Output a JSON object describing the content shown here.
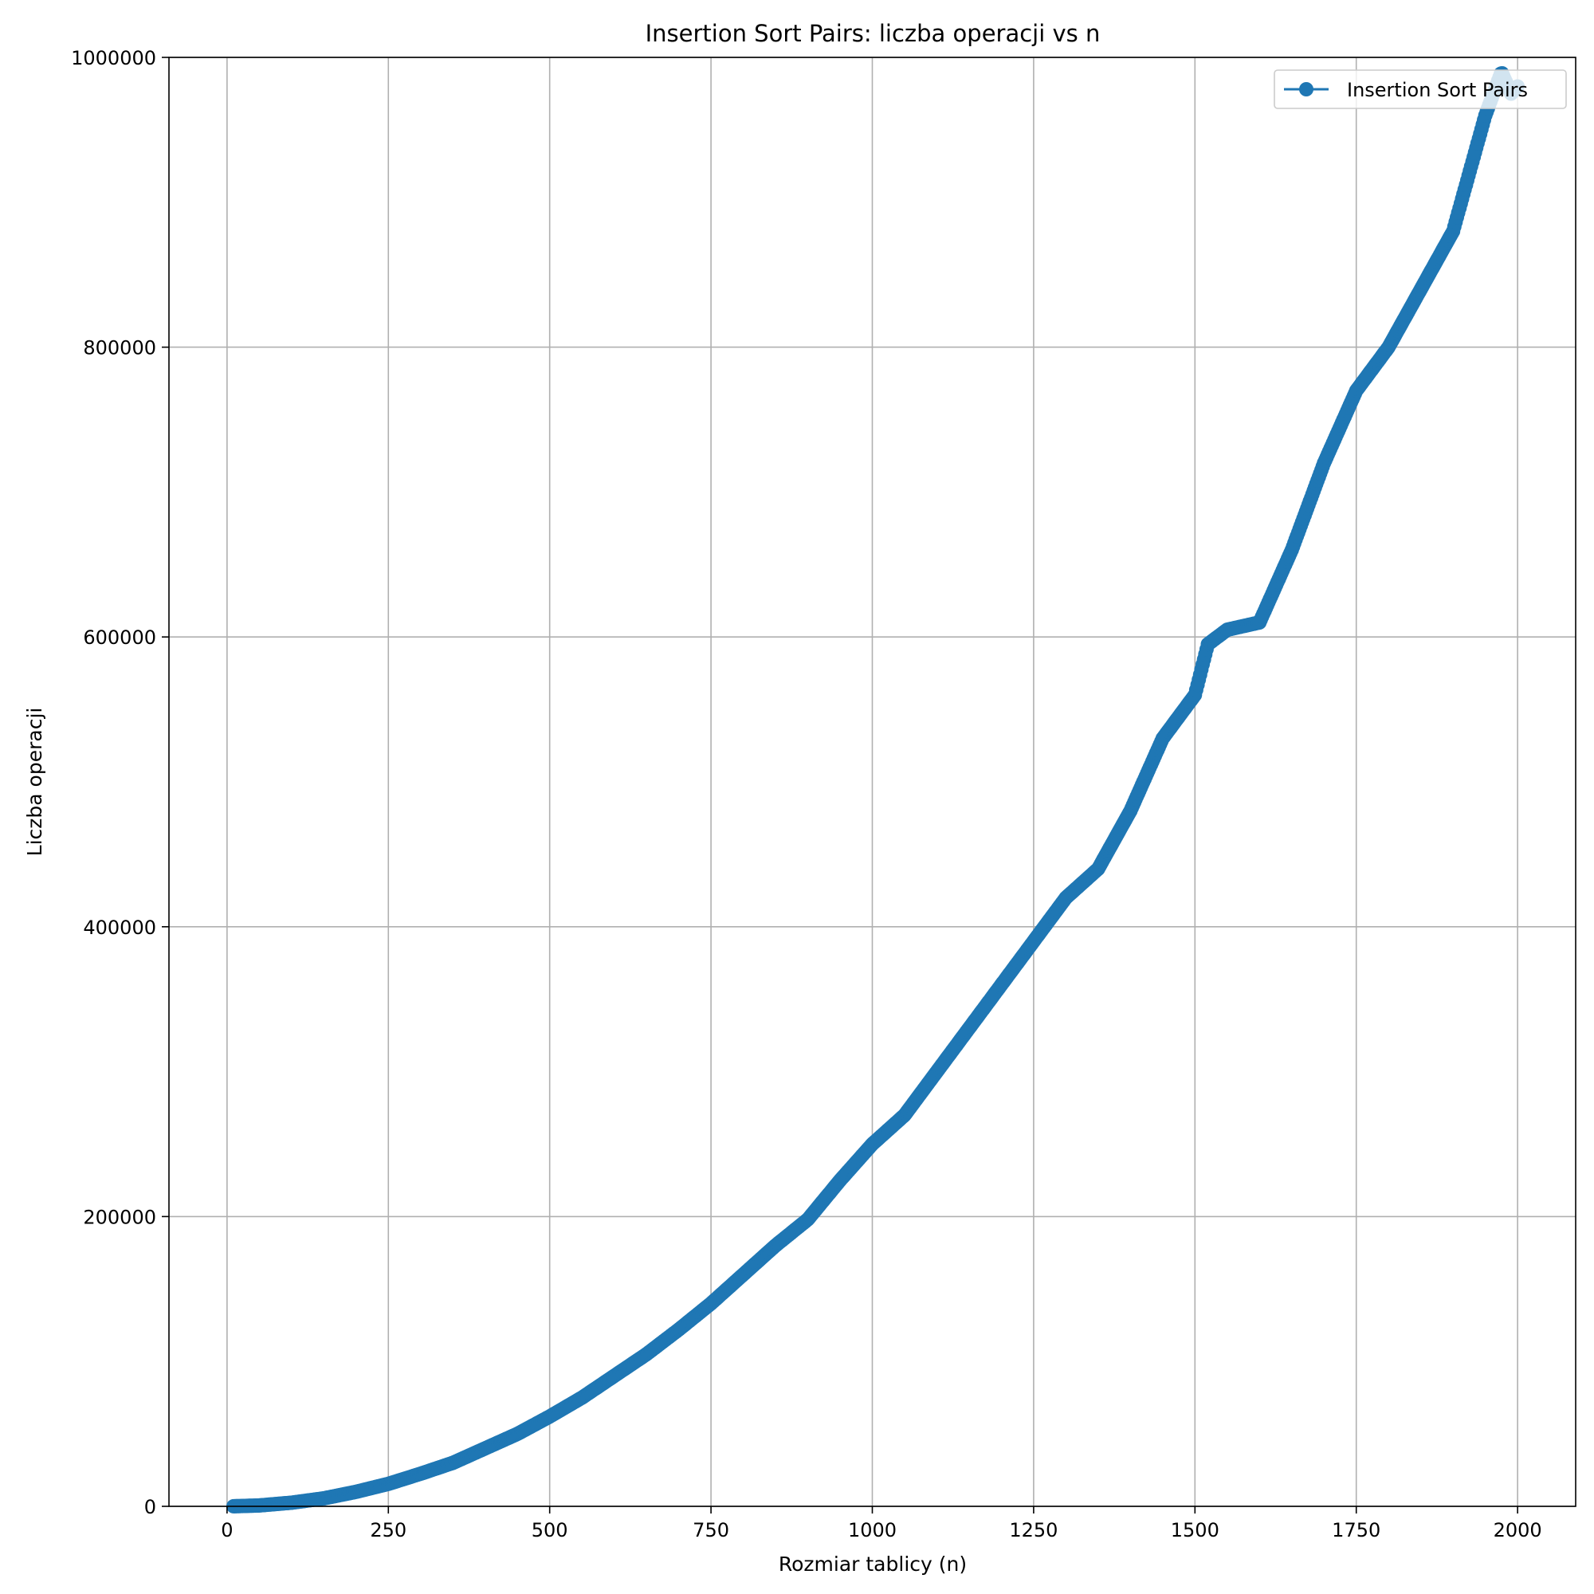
{
  "chart_data": {
    "type": "line",
    "title": "Insertion Sort Pairs: liczba operacji vs n",
    "xlabel": "Rozmiar tablicy (n)",
    "ylabel": "Liczba operacji",
    "xlim": [
      -90,
      2090
    ],
    "ylim": [
      0,
      1000000
    ],
    "xticks": [
      0,
      250,
      500,
      750,
      1000,
      1250,
      1500,
      1750,
      2000
    ],
    "yticks": [
      0,
      200000,
      400000,
      600000,
      800000,
      1000000
    ],
    "xtick_labels": [
      "0",
      "250",
      "500",
      "750",
      "1000",
      "1250",
      "1500",
      "1750",
      "2000"
    ],
    "ytick_labels": [
      "0",
      "200000",
      "400000",
      "600000",
      "800000",
      "1000000"
    ],
    "grid": true,
    "legend": {
      "position": "top-right",
      "entries": [
        "Insertion Sort Pairs"
      ]
    },
    "colors": {
      "series": "#1f77b4"
    },
    "series": [
      {
        "name": "Insertion Sort Pairs",
        "marker": "circle",
        "points": [
          [
            10,
            30
          ],
          [
            50,
            600
          ],
          [
            100,
            2500
          ],
          [
            150,
            5500
          ],
          [
            200,
            10000
          ],
          [
            250,
            15500
          ],
          [
            300,
            22500
          ],
          [
            350,
            30000
          ],
          [
            400,
            40000
          ],
          [
            450,
            50000
          ],
          [
            500,
            62000
          ],
          [
            550,
            75000
          ],
          [
            600,
            90000
          ],
          [
            650,
            105000
          ],
          [
            700,
            122000
          ],
          [
            750,
            140000
          ],
          [
            800,
            160000
          ],
          [
            850,
            180000
          ],
          [
            900,
            198000
          ],
          [
            950,
            225000
          ],
          [
            1000,
            250000
          ],
          [
            1050,
            270000
          ],
          [
            1100,
            300000
          ],
          [
            1150,
            330000
          ],
          [
            1200,
            360000
          ],
          [
            1250,
            390000
          ],
          [
            1300,
            420000
          ],
          [
            1350,
            440000
          ],
          [
            1400,
            480000
          ],
          [
            1450,
            530000
          ],
          [
            1500,
            560000
          ],
          [
            1520,
            595000
          ],
          [
            1550,
            605000
          ],
          [
            1600,
            610000
          ],
          [
            1650,
            660000
          ],
          [
            1700,
            720000
          ],
          [
            1750,
            770000
          ],
          [
            1800,
            800000
          ],
          [
            1850,
            840000
          ],
          [
            1900,
            880000
          ],
          [
            1950,
            960000
          ],
          [
            1975,
            990000
          ],
          [
            1990,
            975000
          ],
          [
            2000,
            980000
          ]
        ]
      }
    ]
  }
}
